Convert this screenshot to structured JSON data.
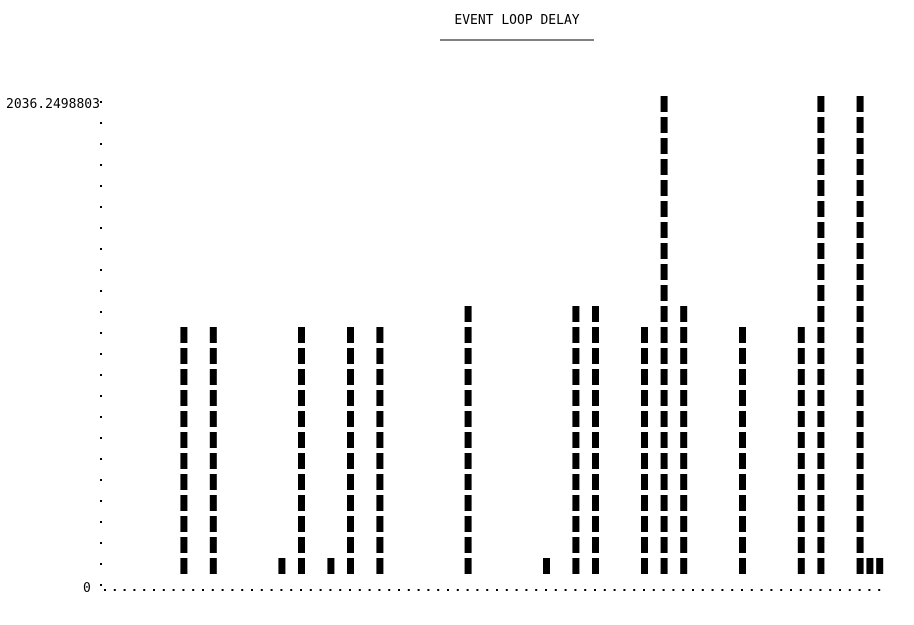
{
  "chart_data": {
    "type": "bar",
    "style": "ascii-terminal",
    "title": "EVENT LOOP DELAY",
    "xlabel": "",
    "ylabel": "",
    "y_max_label": "2036.2498803",
    "y_min_label": "0",
    "ylim": [
      0,
      2036.2498803
    ],
    "grid": false,
    "legend": "none",
    "bar_color": "#000000",
    "series": [
      {
        "values": [
          0,
          0,
          0,
          0,
          0,
          0,
          0,
          0,
          1050,
          0,
          0,
          1050,
          0,
          0,
          0,
          0,
          0,
          0,
          100,
          0,
          1050,
          0,
          0,
          100,
          0,
          1050,
          0,
          0,
          1050,
          0,
          0,
          0,
          0,
          0,
          0,
          0,
          0,
          1145,
          0,
          0,
          0,
          0,
          0,
          0,
          0,
          100,
          0,
          0,
          1145,
          0,
          1145,
          0,
          0,
          0,
          0,
          1050,
          0,
          2036.2498803,
          0,
          1145,
          0,
          0,
          0,
          0,
          0,
          1050,
          0,
          0,
          0,
          0,
          0,
          1050,
          0,
          2036.2498803,
          0,
          0,
          0,
          2036.2498803,
          100,
          100
        ]
      }
    ]
  }
}
